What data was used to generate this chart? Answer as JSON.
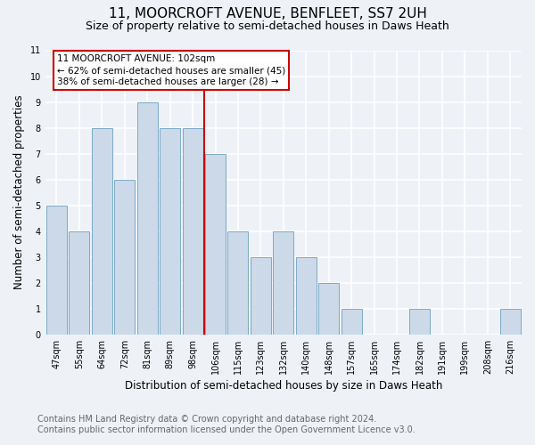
{
  "title": "11, MOORCROFT AVENUE, BENFLEET, SS7 2UH",
  "subtitle": "Size of property relative to semi-detached houses in Daws Heath",
  "xlabel": "Distribution of semi-detached houses by size in Daws Heath",
  "ylabel": "Number of semi-detached properties",
  "categories": [
    "47sqm",
    "55sqm",
    "64sqm",
    "72sqm",
    "81sqm",
    "89sqm",
    "98sqm",
    "106sqm",
    "115sqm",
    "123sqm",
    "132sqm",
    "140sqm",
    "148sqm",
    "157sqm",
    "165sqm",
    "174sqm",
    "182sqm",
    "191sqm",
    "199sqm",
    "208sqm",
    "216sqm"
  ],
  "values": [
    5,
    4,
    8,
    6,
    9,
    8,
    8,
    7,
    4,
    3,
    4,
    3,
    2,
    1,
    0,
    0,
    1,
    0,
    0,
    0,
    1
  ],
  "bar_color": "#ccd9e8",
  "bar_edgecolor": "#7aaac8",
  "property_line_x": 6.5,
  "annotation_title": "11 MOORCROFT AVENUE: 102sqm",
  "annotation_line1": "← 62% of semi-detached houses are smaller (45)",
  "annotation_line2": "38% of semi-detached houses are larger (28) →",
  "annotation_box_color": "#cc0000",
  "vline_color": "#cc0000",
  "ylim": [
    0,
    11
  ],
  "yticks": [
    0,
    1,
    2,
    3,
    4,
    5,
    6,
    7,
    8,
    9,
    10,
    11
  ],
  "footnote1": "Contains HM Land Registry data © Crown copyright and database right 2024.",
  "footnote2": "Contains public sector information licensed under the Open Government Licence v3.0.",
  "bg_color": "#eef2f7",
  "grid_color": "#ffffff",
  "title_fontsize": 11,
  "subtitle_fontsize": 9,
  "axis_label_fontsize": 8.5,
  "tick_fontsize": 7,
  "footnote_fontsize": 7,
  "annotation_fontsize": 7.5
}
